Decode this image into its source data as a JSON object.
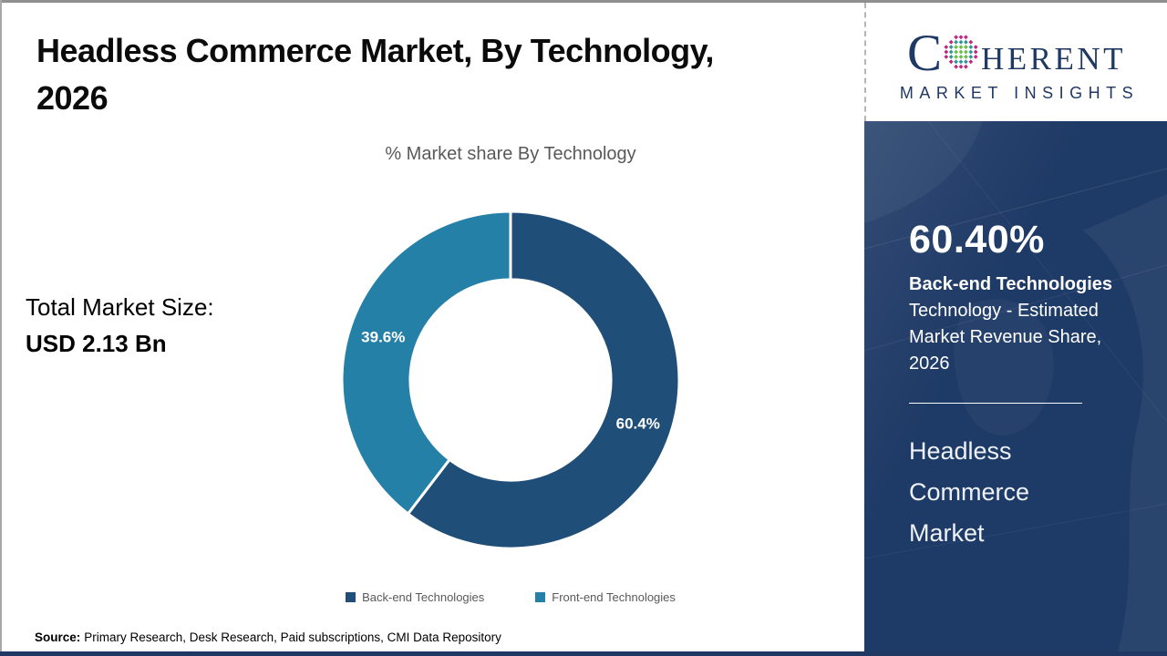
{
  "slide": {
    "title_lines": [
      "Headless Commerce Market, By Technology,",
      "2026"
    ],
    "total_market": {
      "label": "Total Market Size:",
      "value": "USD 2.13 Bn"
    },
    "source": {
      "label": "Source:",
      "text": "Primary Research, Desk Research, Paid subscriptions, CMI Data Repository"
    }
  },
  "chart_data": {
    "type": "pie",
    "subtype": "donut",
    "title": "% Market share By Technology",
    "categories": [
      "Back-end Technologies",
      "Front-end Technologies"
    ],
    "values": [
      60.4,
      39.6
    ],
    "labels": [
      "60.4%",
      "39.6%"
    ],
    "colors": [
      "#1f4e79",
      "#2580a8"
    ],
    "start_angle": 0,
    "direction": "clockwise",
    "inner_radius_ratio": 0.595,
    "legend_position": "bottom",
    "label_color": "#ffffff"
  },
  "sidebar": {
    "bg_color": "#1e3a66",
    "stat_value": "60.40%",
    "stat_label": "Back-end Technologies",
    "stat_desc_lines": [
      "Technology - Estimated",
      "Market Revenue Share,",
      "2026"
    ],
    "headline_lines": [
      "Headless",
      "Commerce",
      "Market"
    ]
  },
  "logo": {
    "word_start": "C",
    "word_end": "HERENT",
    "subtitle": "MARKET INSIGHTS",
    "brand_color": "#1f3864",
    "dot_colors": {
      "inner": "#6abf4b",
      "mid": "#2e9599",
      "outer": "#c0267e"
    }
  }
}
